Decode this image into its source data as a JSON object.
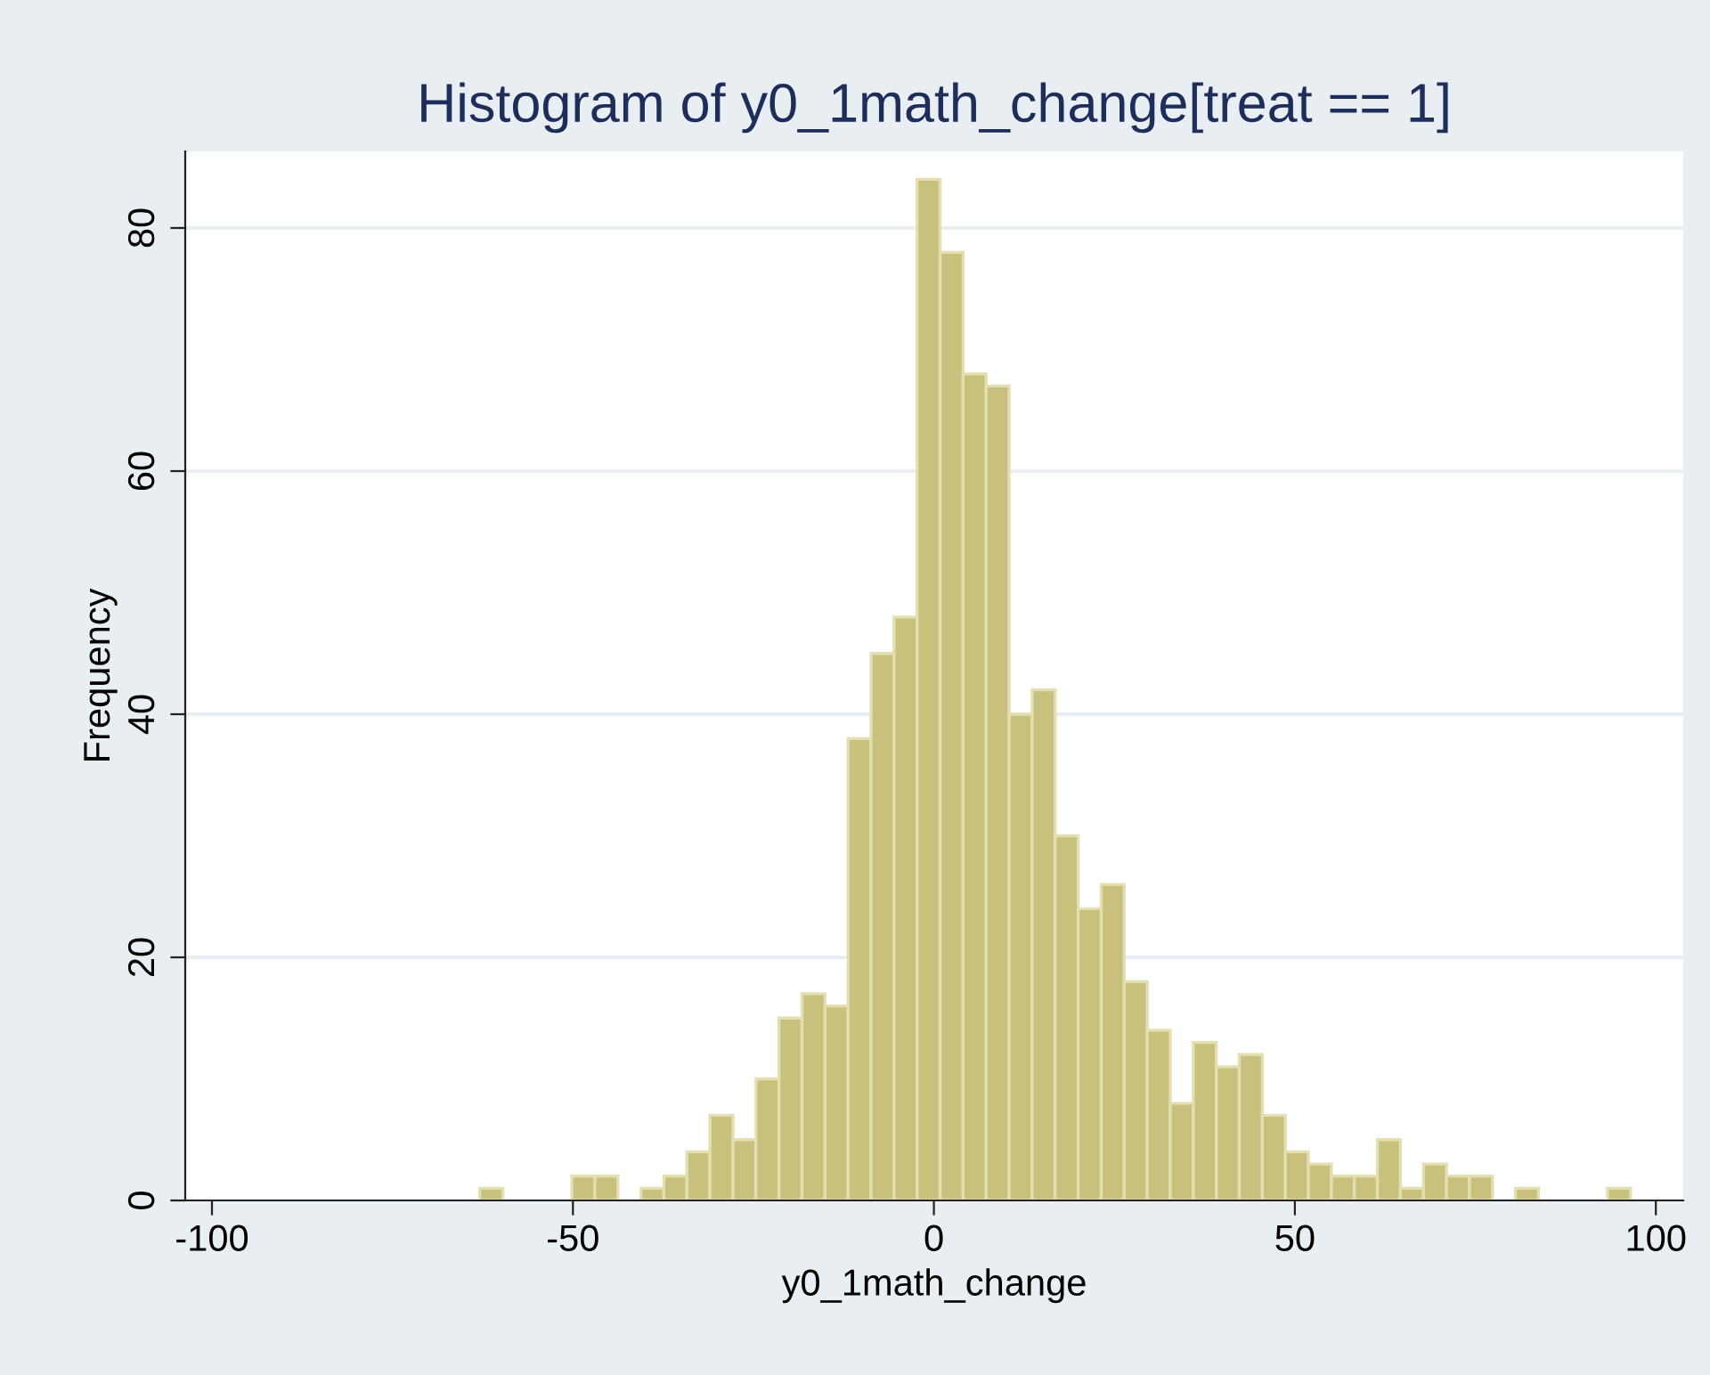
{
  "chart_data": {
    "type": "histogram",
    "title": "Histogram of y0_1math_change[treat == 1]",
    "xlabel": "y0_1math_change",
    "ylabel": "Frequency",
    "bins": [
      -62.9,
      -59.71,
      -56.52,
      -53.34,
      -50.15,
      -46.96,
      -43.77,
      -40.58,
      -37.4,
      -34.21,
      -31.02,
      -27.83,
      -24.64,
      -21.46,
      -18.27,
      -15.08,
      -11.89,
      -8.7,
      -5.52,
      -2.33,
      0.86,
      4.05,
      7.24,
      10.42,
      13.61,
      16.8,
      19.99,
      23.18,
      26.36,
      29.55,
      32.74,
      35.93,
      39.12,
      42.3,
      45.49,
      48.68,
      51.87,
      55.06,
      58.24,
      61.43,
      64.62,
      67.81,
      71.0,
      74.18,
      77.37,
      80.56,
      83.75,
      86.94,
      90.12,
      93.31,
      96.5
    ],
    "values": [
      1,
      0,
      0,
      0,
      2,
      2,
      0,
      1,
      2,
      4,
      7,
      5,
      10,
      15,
      17,
      16,
      38,
      45,
      48,
      84,
      78,
      68,
      67,
      40,
      42,
      30,
      24,
      26,
      18,
      14,
      8,
      13,
      11,
      12,
      7,
      4,
      3,
      2,
      2,
      5,
      1,
      3,
      2,
      2,
      0,
      1,
      0,
      0,
      0,
      1
    ],
    "color": "#c8c17e",
    "xlim": [
      -103.7,
      103.8
    ],
    "xticks": [
      -100,
      -50,
      0,
      50,
      100
    ],
    "ylim": [
      0,
      86.3
    ],
    "yticks": [
      0,
      20,
      40,
      60,
      80
    ],
    "grid": "y"
  }
}
